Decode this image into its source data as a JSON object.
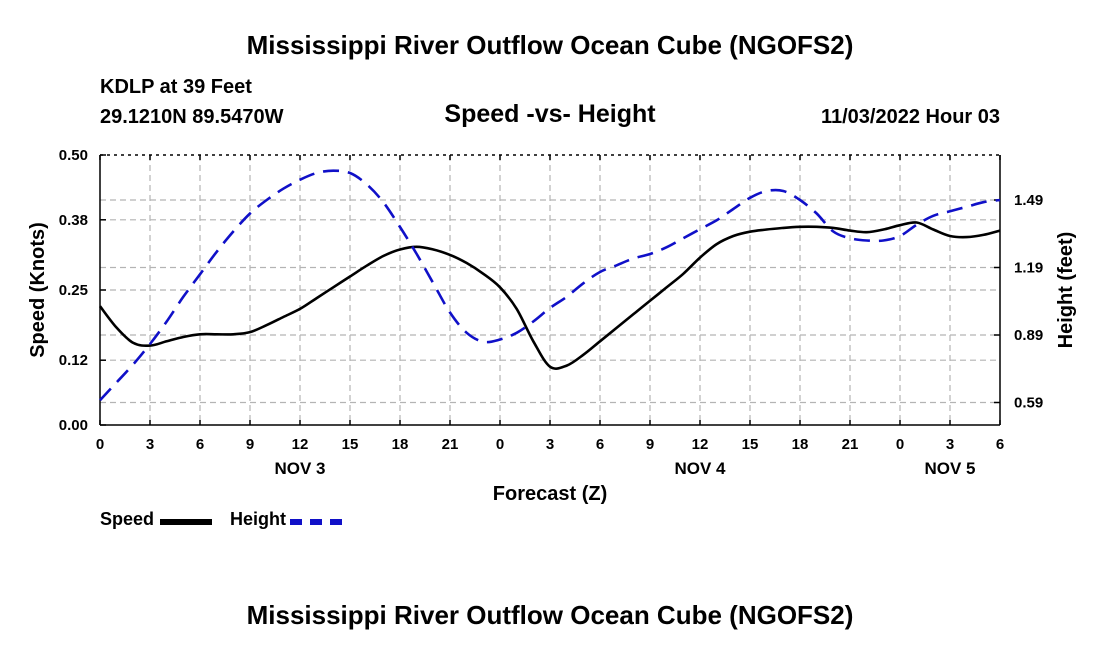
{
  "page": {
    "title_top": "Mississippi River Outflow Ocean Cube (NGOFS2)",
    "title_bottom": "Mississippi River Outflow Ocean Cube (NGOFS2)",
    "station": "KDLP at 39 Feet",
    "coords": "29.1210N  89.5470W",
    "subtitle": "Speed -vs- Height",
    "timestamp": "11/03/2022 Hour 03"
  },
  "legend": {
    "speed_label": "Speed",
    "height_label": "Height"
  },
  "colors": {
    "speed": "#000000",
    "height": "#1010c8",
    "grid": "#b4b4b4"
  },
  "chart_data": {
    "type": "line",
    "title": "Speed -vs- Height",
    "xlabel": "Forecast (Z)",
    "ylabel": "Speed (Knots)",
    "y2label": "Height (feet)",
    "xlim": [
      0,
      54
    ],
    "ylim": [
      0,
      0.5
    ],
    "y2lim": [
      0.49,
      1.69
    ],
    "x_ticks": [
      0,
      3,
      6,
      9,
      12,
      15,
      18,
      21,
      24,
      27,
      30,
      33,
      36,
      39,
      42,
      45,
      48,
      51,
      54
    ],
    "x_tick_labels": [
      "0",
      "3",
      "6",
      "9",
      "12",
      "15",
      "18",
      "21",
      "0",
      "3",
      "6",
      "9",
      "12",
      "15",
      "18",
      "21",
      "0",
      "3",
      "6"
    ],
    "day_labels": [
      {
        "x": 12,
        "label": "NOV 3"
      },
      {
        "x": 36,
        "label": "NOV 4"
      },
      {
        "x": 51,
        "label": "NOV 5"
      }
    ],
    "y_ticks": [
      0.0,
      0.12,
      0.25,
      0.38,
      0.5
    ],
    "y_tick_labels": [
      "0.00",
      "0.12",
      "0.25",
      "0.38",
      "0.50"
    ],
    "y2_ticks": [
      0.59,
      0.89,
      1.19,
      1.49
    ],
    "y2_tick_labels": [
      "0.59",
      "0.89",
      "1.19",
      "1.49"
    ],
    "grid": true,
    "series": [
      {
        "name": "Speed",
        "axis": "left",
        "style": "solid",
        "x": [
          0,
          1,
          2,
          3,
          4,
          5,
          6,
          7,
          8,
          9,
          10,
          11,
          12,
          13,
          14,
          15,
          16,
          17,
          18,
          19,
          20,
          21,
          22,
          23,
          24,
          25,
          26,
          27,
          28,
          29,
          30,
          31,
          32,
          33,
          34,
          35,
          36,
          37,
          38,
          39,
          40,
          41,
          42,
          43,
          44,
          45,
          46,
          47,
          48,
          49,
          50,
          51,
          52,
          53,
          54
        ],
        "values": [
          0.22,
          0.18,
          0.152,
          0.147,
          0.155,
          0.163,
          0.168,
          0.168,
          0.168,
          0.172,
          0.185,
          0.2,
          0.215,
          0.235,
          0.255,
          0.275,
          0.295,
          0.313,
          0.325,
          0.33,
          0.325,
          0.315,
          0.3,
          0.28,
          0.255,
          0.215,
          0.155,
          0.108,
          0.11,
          0.13,
          0.155,
          0.18,
          0.205,
          0.23,
          0.255,
          0.28,
          0.31,
          0.335,
          0.35,
          0.358,
          0.362,
          0.365,
          0.367,
          0.367,
          0.365,
          0.36,
          0.357,
          0.362,
          0.37,
          0.375,
          0.362,
          0.35,
          0.348,
          0.352,
          0.36
        ]
      },
      {
        "name": "Height",
        "axis": "right",
        "style": "dashed",
        "x": [
          0,
          1,
          2,
          3,
          4,
          5,
          6,
          7,
          8,
          9,
          10,
          11,
          12,
          13,
          14,
          15,
          16,
          17,
          18,
          19,
          20,
          21,
          22,
          23,
          24,
          25,
          26,
          27,
          28,
          29,
          30,
          31,
          32,
          33,
          34,
          35,
          36,
          37,
          38,
          39,
          40,
          41,
          42,
          43,
          44,
          45,
          46,
          47,
          48,
          49,
          50,
          51,
          52,
          53,
          54
        ],
        "values": [
          0.6,
          0.68,
          0.76,
          0.85,
          0.95,
          1.06,
          1.16,
          1.26,
          1.35,
          1.43,
          1.49,
          1.54,
          1.58,
          1.61,
          1.62,
          1.61,
          1.56,
          1.48,
          1.37,
          1.25,
          1.12,
          0.99,
          0.9,
          0.86,
          0.87,
          0.9,
          0.95,
          1.01,
          1.06,
          1.12,
          1.17,
          1.2,
          1.23,
          1.25,
          1.28,
          1.32,
          1.36,
          1.4,
          1.45,
          1.5,
          1.53,
          1.53,
          1.49,
          1.43,
          1.35,
          1.32,
          1.31,
          1.31,
          1.33,
          1.38,
          1.42,
          1.44,
          1.46,
          1.48,
          1.49
        ]
      }
    ]
  }
}
